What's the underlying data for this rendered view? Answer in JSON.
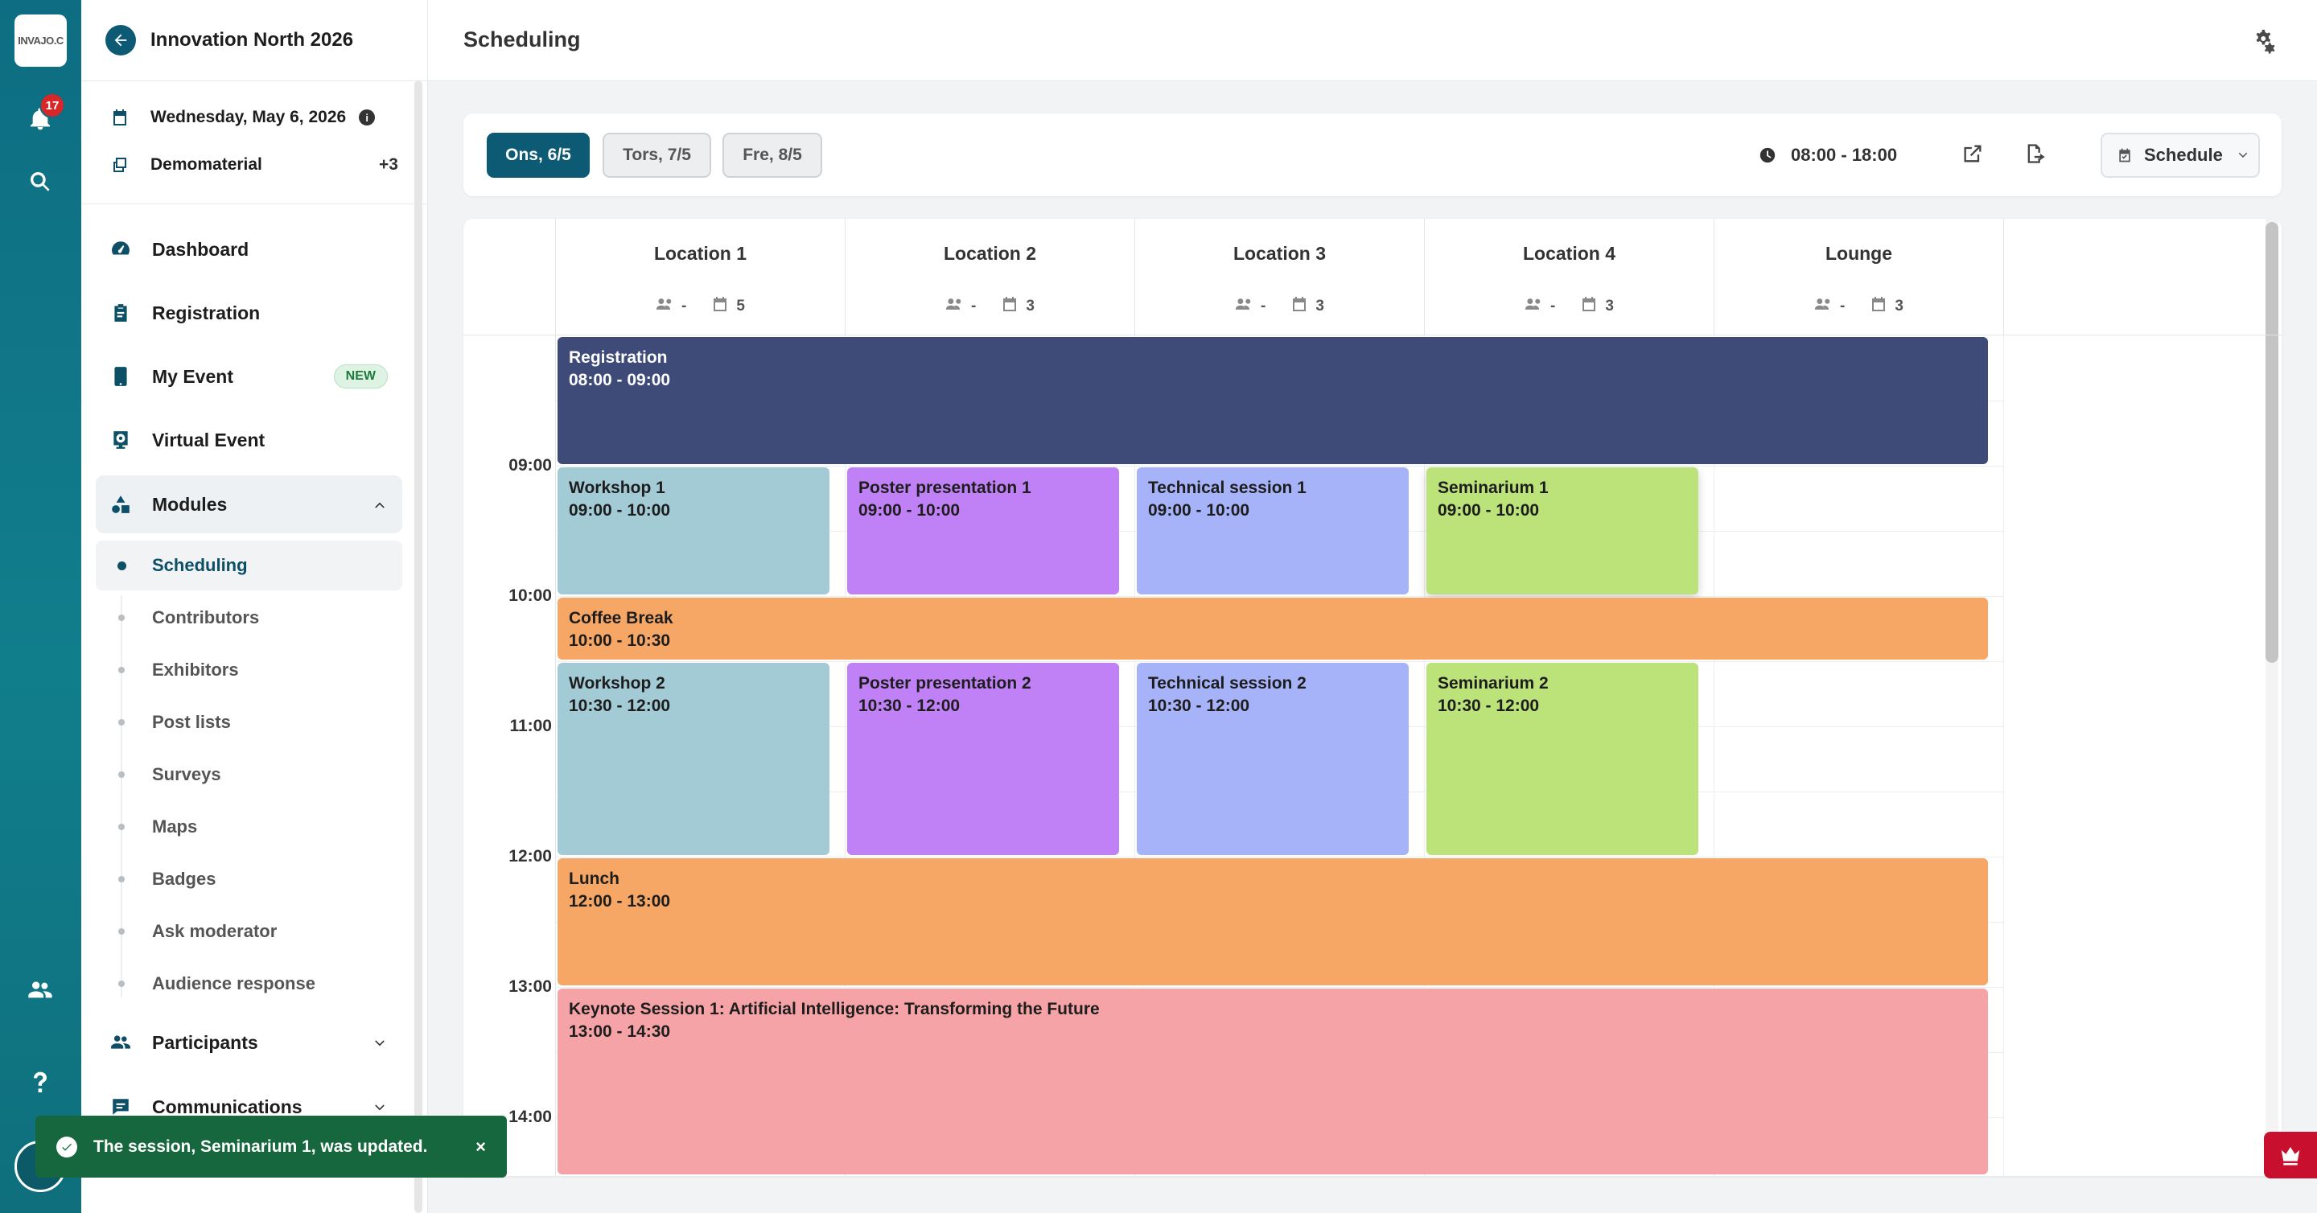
{
  "rail": {
    "logo_text": "INVAJO.C",
    "notif_count": "17"
  },
  "sidebar": {
    "event_title": "Innovation North 2026",
    "date": "Wednesday, May 6, 2026",
    "material": "Demomaterial",
    "material_extra": "+3",
    "nav": {
      "dashboard": "Dashboard",
      "registration": "Registration",
      "my_event": "My Event",
      "my_event_badge": "NEW",
      "virtual_event": "Virtual Event",
      "modules": "Modules",
      "participants": "Participants",
      "communications": "Communications"
    },
    "modules": [
      {
        "label": "Scheduling",
        "active": true
      },
      {
        "label": "Contributors"
      },
      {
        "label": "Exhibitors"
      },
      {
        "label": "Post lists"
      },
      {
        "label": "Surveys"
      },
      {
        "label": "Maps"
      },
      {
        "label": "Badges"
      },
      {
        "label": "Ask moderator"
      },
      {
        "label": "Audience response"
      }
    ]
  },
  "header": {
    "title": "Scheduling"
  },
  "toolbar": {
    "days": [
      {
        "label": "Ons, 6/5",
        "active": true
      },
      {
        "label": "Tors, 7/5",
        "active": false
      },
      {
        "label": "Fre, 8/5",
        "active": false
      }
    ],
    "time_range": "08:00 - 18:00",
    "view": "Schedule"
  },
  "calendar": {
    "locations": [
      {
        "name": "Location 1",
        "people": "-",
        "sessions": "5"
      },
      {
        "name": "Location 2",
        "people": "-",
        "sessions": "3"
      },
      {
        "name": "Location 3",
        "people": "-",
        "sessions": "3"
      },
      {
        "name": "Location 4",
        "people": "-",
        "sessions": "3"
      },
      {
        "name": "Lounge",
        "people": "-",
        "sessions": "3"
      }
    ],
    "hours": [
      "09:00",
      "10:00",
      "11:00",
      "12:00",
      "13:00",
      "14:00"
    ],
    "events": [
      {
        "title": "Registration",
        "time": "08:00 - 09:00",
        "color": "#3e4a78"
      },
      {
        "title": "Workshop 1",
        "time": "09:00 - 10:00",
        "color": "#a2cbd6"
      },
      {
        "title": "Poster presentation 1",
        "time": "09:00 - 10:00",
        "color": "#c081f7"
      },
      {
        "title": "Technical session 1",
        "time": "09:00 - 10:00",
        "color": "#a6b3f9"
      },
      {
        "title": "Seminarium 1",
        "time": "09:00 - 10:00",
        "color": "#bce27a"
      },
      {
        "title": "Coffee Break",
        "time": "10:00 - 10:30",
        "color": "#f6a766"
      },
      {
        "title": "Workshop 2",
        "time": "10:30 - 12:00",
        "color": "#a2cbd6"
      },
      {
        "title": "Poster presentation 2",
        "time": "10:30 - 12:00",
        "color": "#c081f7"
      },
      {
        "title": "Technical session 2",
        "time": "10:30 - 12:00",
        "color": "#a6b3f9"
      },
      {
        "title": "Seminarium 2",
        "time": "10:30 - 12:00",
        "color": "#bce27a"
      },
      {
        "title": "Lunch",
        "time": "12:00 - 13:00",
        "color": "#f6a766"
      },
      {
        "title": "Keynote Session 1: Artificial Intelligence: Transforming the Future",
        "time": "13:00 - 14:30",
        "color": "#f5a3a6"
      }
    ]
  },
  "toast": {
    "message": "The session, Seminarium 1, was updated.",
    "close": "×"
  }
}
